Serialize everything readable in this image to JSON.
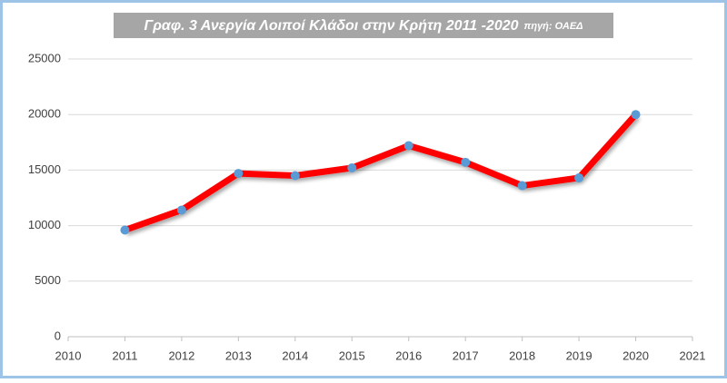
{
  "chart_data": {
    "type": "line",
    "title": "Γραφ. 3 Ανεργία Λοιποί Κλάδοι στην Κρήτη 2011 -2020",
    "subtitle": "πηγή: ΟΑΕΔ",
    "x": [
      2011,
      2012,
      2013,
      2014,
      2015,
      2016,
      2017,
      2018,
      2019,
      2020
    ],
    "series": [
      {
        "name": "Ανεργία",
        "color": "#ff0000",
        "marker_color": "#5b9bd5",
        "values": [
          9600,
          11400,
          14700,
          14500,
          15200,
          17200,
          15700,
          13600,
          14300,
          20000
        ]
      }
    ],
    "xlim": [
      2010,
      2021
    ],
    "xticks": [
      2010,
      2011,
      2012,
      2013,
      2014,
      2015,
      2016,
      2017,
      2018,
      2019,
      2020,
      2021
    ],
    "ylim": [
      0,
      25000
    ],
    "yticks": [
      0,
      5000,
      10000,
      15000,
      20000,
      25000
    ],
    "grid": true
  }
}
